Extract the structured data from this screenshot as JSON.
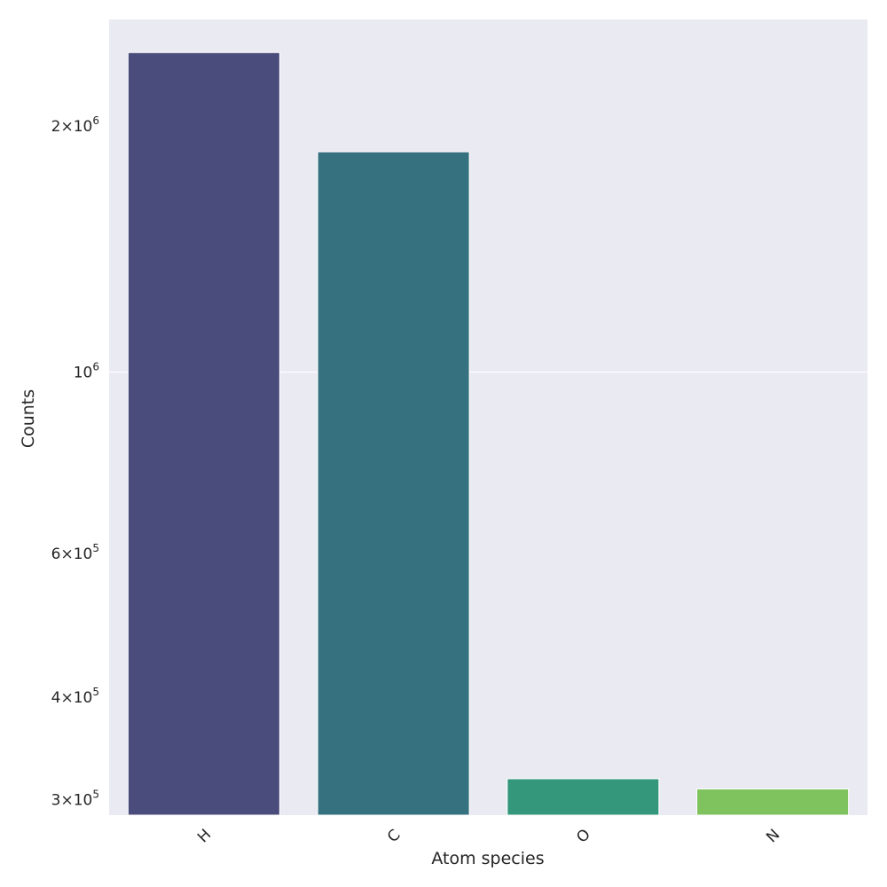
{
  "chart_data": {
    "type": "bar",
    "xlabel": "Atom species",
    "ylabel": "Counts",
    "categories": [
      "H",
      "C",
      "O",
      "N"
    ],
    "values": [
      2460000,
      1860000,
      318000,
      309000
    ],
    "yscale": "log",
    "ylim": [
      287000,
      2700000
    ],
    "y_ticks": [
      {
        "value": 300000,
        "mantissa": "3",
        "exponent": "5"
      },
      {
        "value": 400000,
        "mantissa": "4",
        "exponent": "5"
      },
      {
        "value": 600000,
        "mantissa": "6",
        "exponent": "5"
      },
      {
        "value": 1000000,
        "mantissa": "",
        "exponent": "6"
      },
      {
        "value": 2000000,
        "mantissa": "2",
        "exponent": "6"
      }
    ],
    "major_gridlines": [
      1000000
    ],
    "grid": true,
    "background_color": "#eaeaf2",
    "bar_colors": [
      "#4a4c7c",
      "#367180",
      "#34977c",
      "#7fc35f"
    ]
  }
}
